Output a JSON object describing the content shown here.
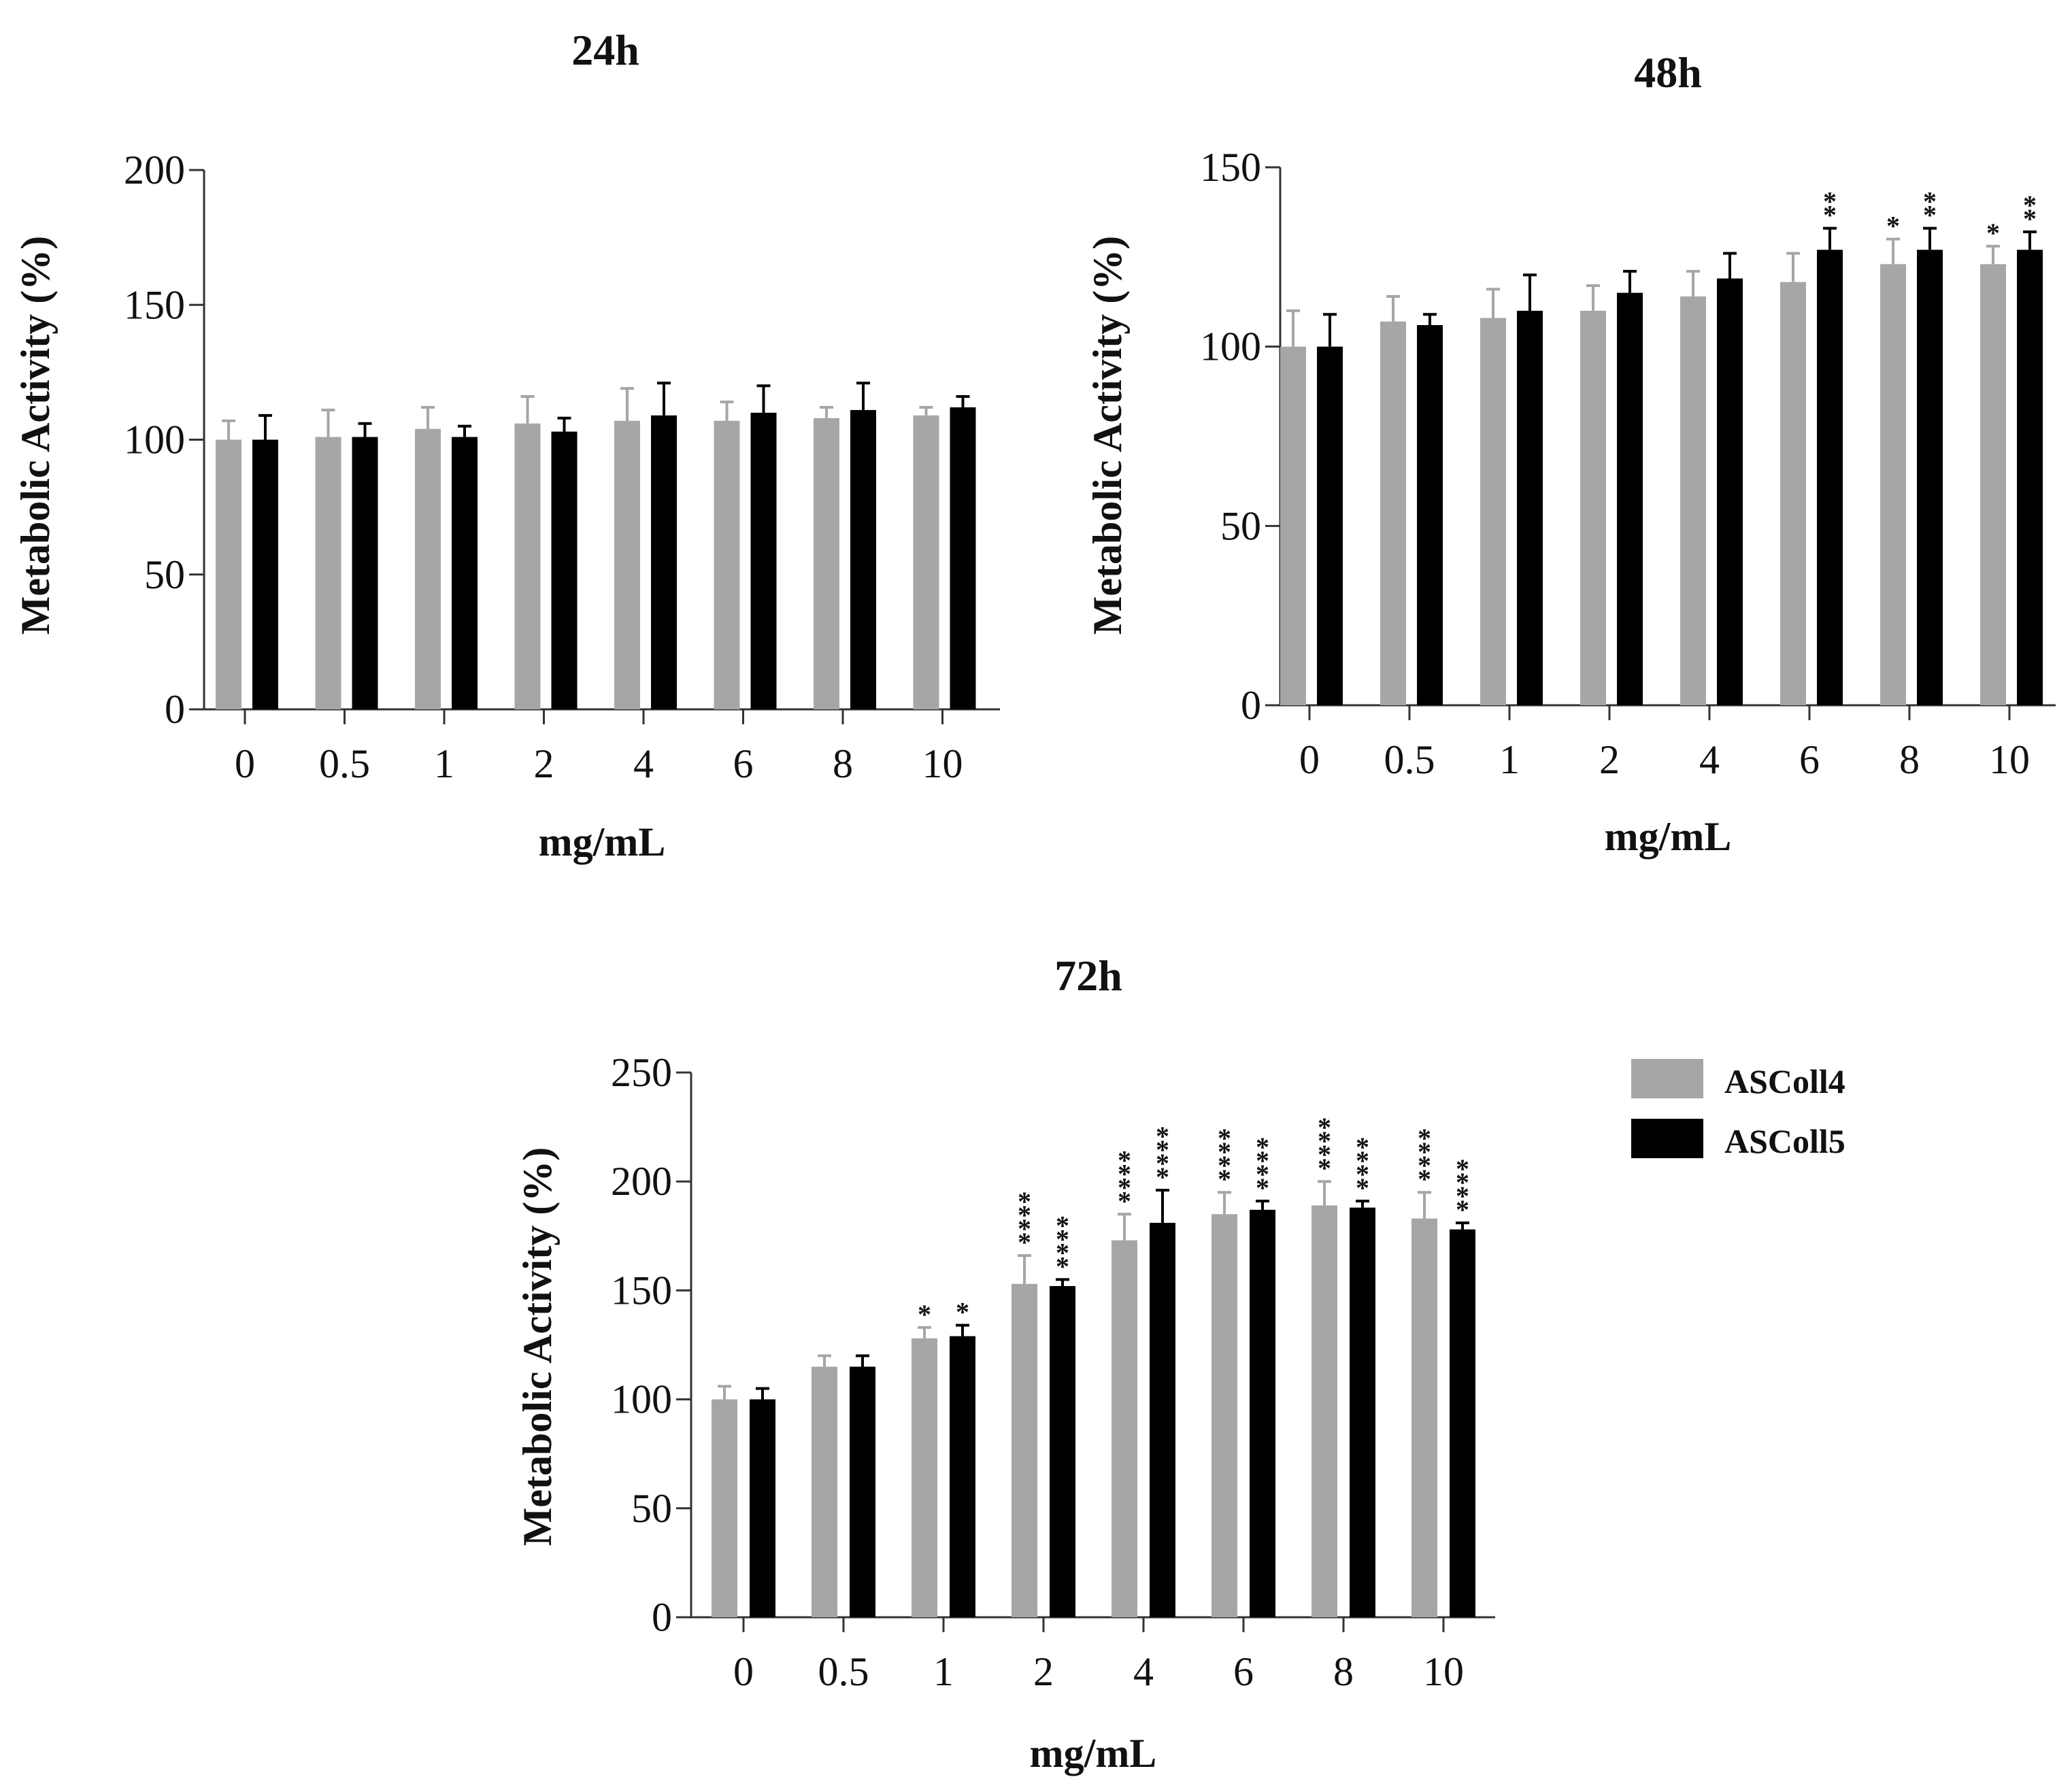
{
  "chart_data": [
    {
      "id": "24h",
      "type": "bar",
      "title": "24h",
      "xlabel": "mg/mL",
      "ylabel": "Metabolic Activity (%)",
      "categories": [
        "0",
        "0.5",
        "1",
        "2",
        "4",
        "6",
        "8",
        "10"
      ],
      "ylim": [
        0,
        200
      ],
      "yticks": [
        0,
        50,
        100,
        150,
        200
      ],
      "series": [
        {
          "name": "ASColl4",
          "color": "#a6a6a8",
          "values": [
            100,
            101,
            104,
            106,
            107,
            107,
            108,
            109
          ],
          "errors": [
            7,
            10,
            8,
            10,
            12,
            7,
            4,
            3
          ],
          "significance": [
            "",
            "",
            "",
            "",
            "",
            "",
            "",
            ""
          ]
        },
        {
          "name": "ASColl5",
          "color": "#000000",
          "values": [
            100,
            101,
            101,
            103,
            109,
            110,
            111,
            112
          ],
          "errors": [
            9,
            5,
            4,
            5,
            12,
            10,
            10,
            4
          ],
          "significance": [
            "",
            "",
            "",
            "",
            "",
            "",
            "",
            ""
          ]
        }
      ]
    },
    {
      "id": "48h",
      "type": "bar",
      "title": "48h",
      "xlabel": "mg/mL",
      "ylabel": "Metabolic Activity (%)",
      "categories": [
        "0",
        "0.5",
        "1",
        "2",
        "4",
        "6",
        "8",
        "10"
      ],
      "ylim": [
        0,
        150
      ],
      "yticks": [
        0,
        50,
        100,
        150
      ],
      "series": [
        {
          "name": "ASColl4",
          "color": "#a6a6a8",
          "values": [
            100,
            107,
            108,
            110,
            114,
            118,
            123,
            123
          ],
          "errors": [
            10,
            7,
            8,
            7,
            7,
            8,
            7,
            5
          ],
          "significance": [
            "",
            "",
            "",
            "",
            "",
            "",
            "*",
            "*"
          ]
        },
        {
          "name": "ASColl5",
          "color": "#000000",
          "values": [
            100,
            106,
            110,
            115,
            119,
            127,
            127,
            127
          ],
          "errors": [
            9,
            3,
            10,
            6,
            7,
            6,
            6,
            5
          ],
          "significance": [
            "",
            "",
            "",
            "",
            "",
            "**",
            "**",
            "**"
          ]
        }
      ]
    },
    {
      "id": "72h",
      "type": "bar",
      "title": "72h",
      "xlabel": "mg/mL",
      "ylabel": "Metabolic Activity (%)",
      "categories": [
        "0",
        "0.5",
        "1",
        "2",
        "4",
        "6",
        "8",
        "10"
      ],
      "ylim": [
        0,
        250
      ],
      "yticks": [
        0,
        50,
        100,
        150,
        200,
        250
      ],
      "legend": "right",
      "series": [
        {
          "name": "ASColl4",
          "color": "#a6a6a8",
          "values": [
            100,
            115,
            128,
            153,
            173,
            185,
            189,
            183
          ],
          "errors": [
            6,
            5,
            5,
            13,
            12,
            10,
            11,
            12
          ],
          "significance": [
            "",
            "",
            "*",
            "****",
            "****",
            "****",
            "****",
            "****"
          ]
        },
        {
          "name": "ASColl5",
          "color": "#000000",
          "values": [
            100,
            115,
            129,
            152,
            181,
            187,
            188,
            178
          ],
          "errors": [
            5,
            5,
            5,
            3,
            15,
            4,
            3,
            3
          ],
          "significance": [
            "",
            "",
            "*",
            "****",
            "****",
            "****",
            "****",
            "****"
          ]
        }
      ]
    }
  ]
}
